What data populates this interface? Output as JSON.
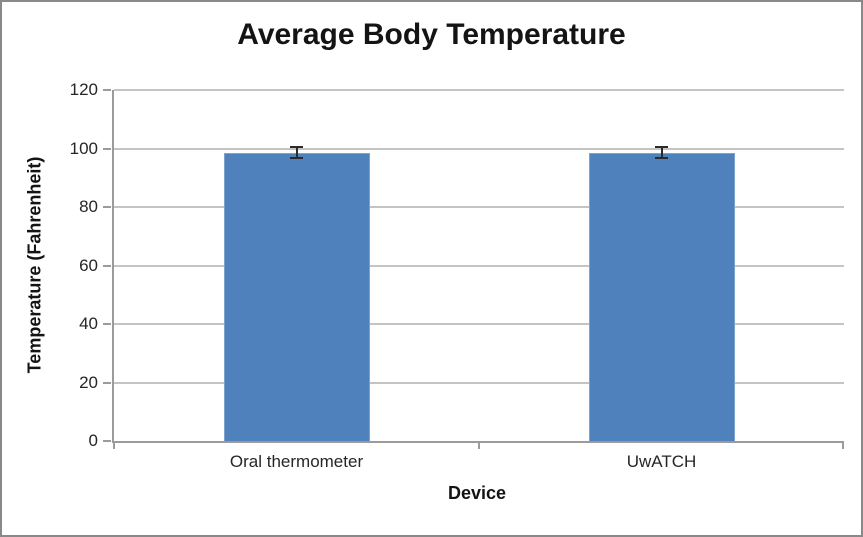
{
  "chart_data": {
    "type": "bar",
    "title": "Average Body Temperature",
    "xlabel": "Device",
    "ylabel": "Temperature (Fahrenheit)",
    "categories": [
      "Oral thermometer",
      "UwATCH"
    ],
    "series": [
      {
        "name": "Average Body Temperature",
        "values": [
          98.6,
          98.6
        ],
        "error_bars": [
          1.8,
          1.8
        ]
      }
    ],
    "ylim": [
      0,
      120
    ],
    "yticks": [
      0,
      20,
      40,
      60,
      80,
      100,
      120
    ],
    "grid": "horizontal",
    "legend_position": "none",
    "colors": {
      "bar": "#4F81BD",
      "bar_border": "#7EA2D0",
      "error_bar": "#2B2B2B",
      "gridline": "#C4C4C4",
      "axis": "#9B9B9B",
      "text": "#262626",
      "title": "#141414",
      "frame_border": "#898989",
      "background": "#FFFFFF"
    }
  }
}
